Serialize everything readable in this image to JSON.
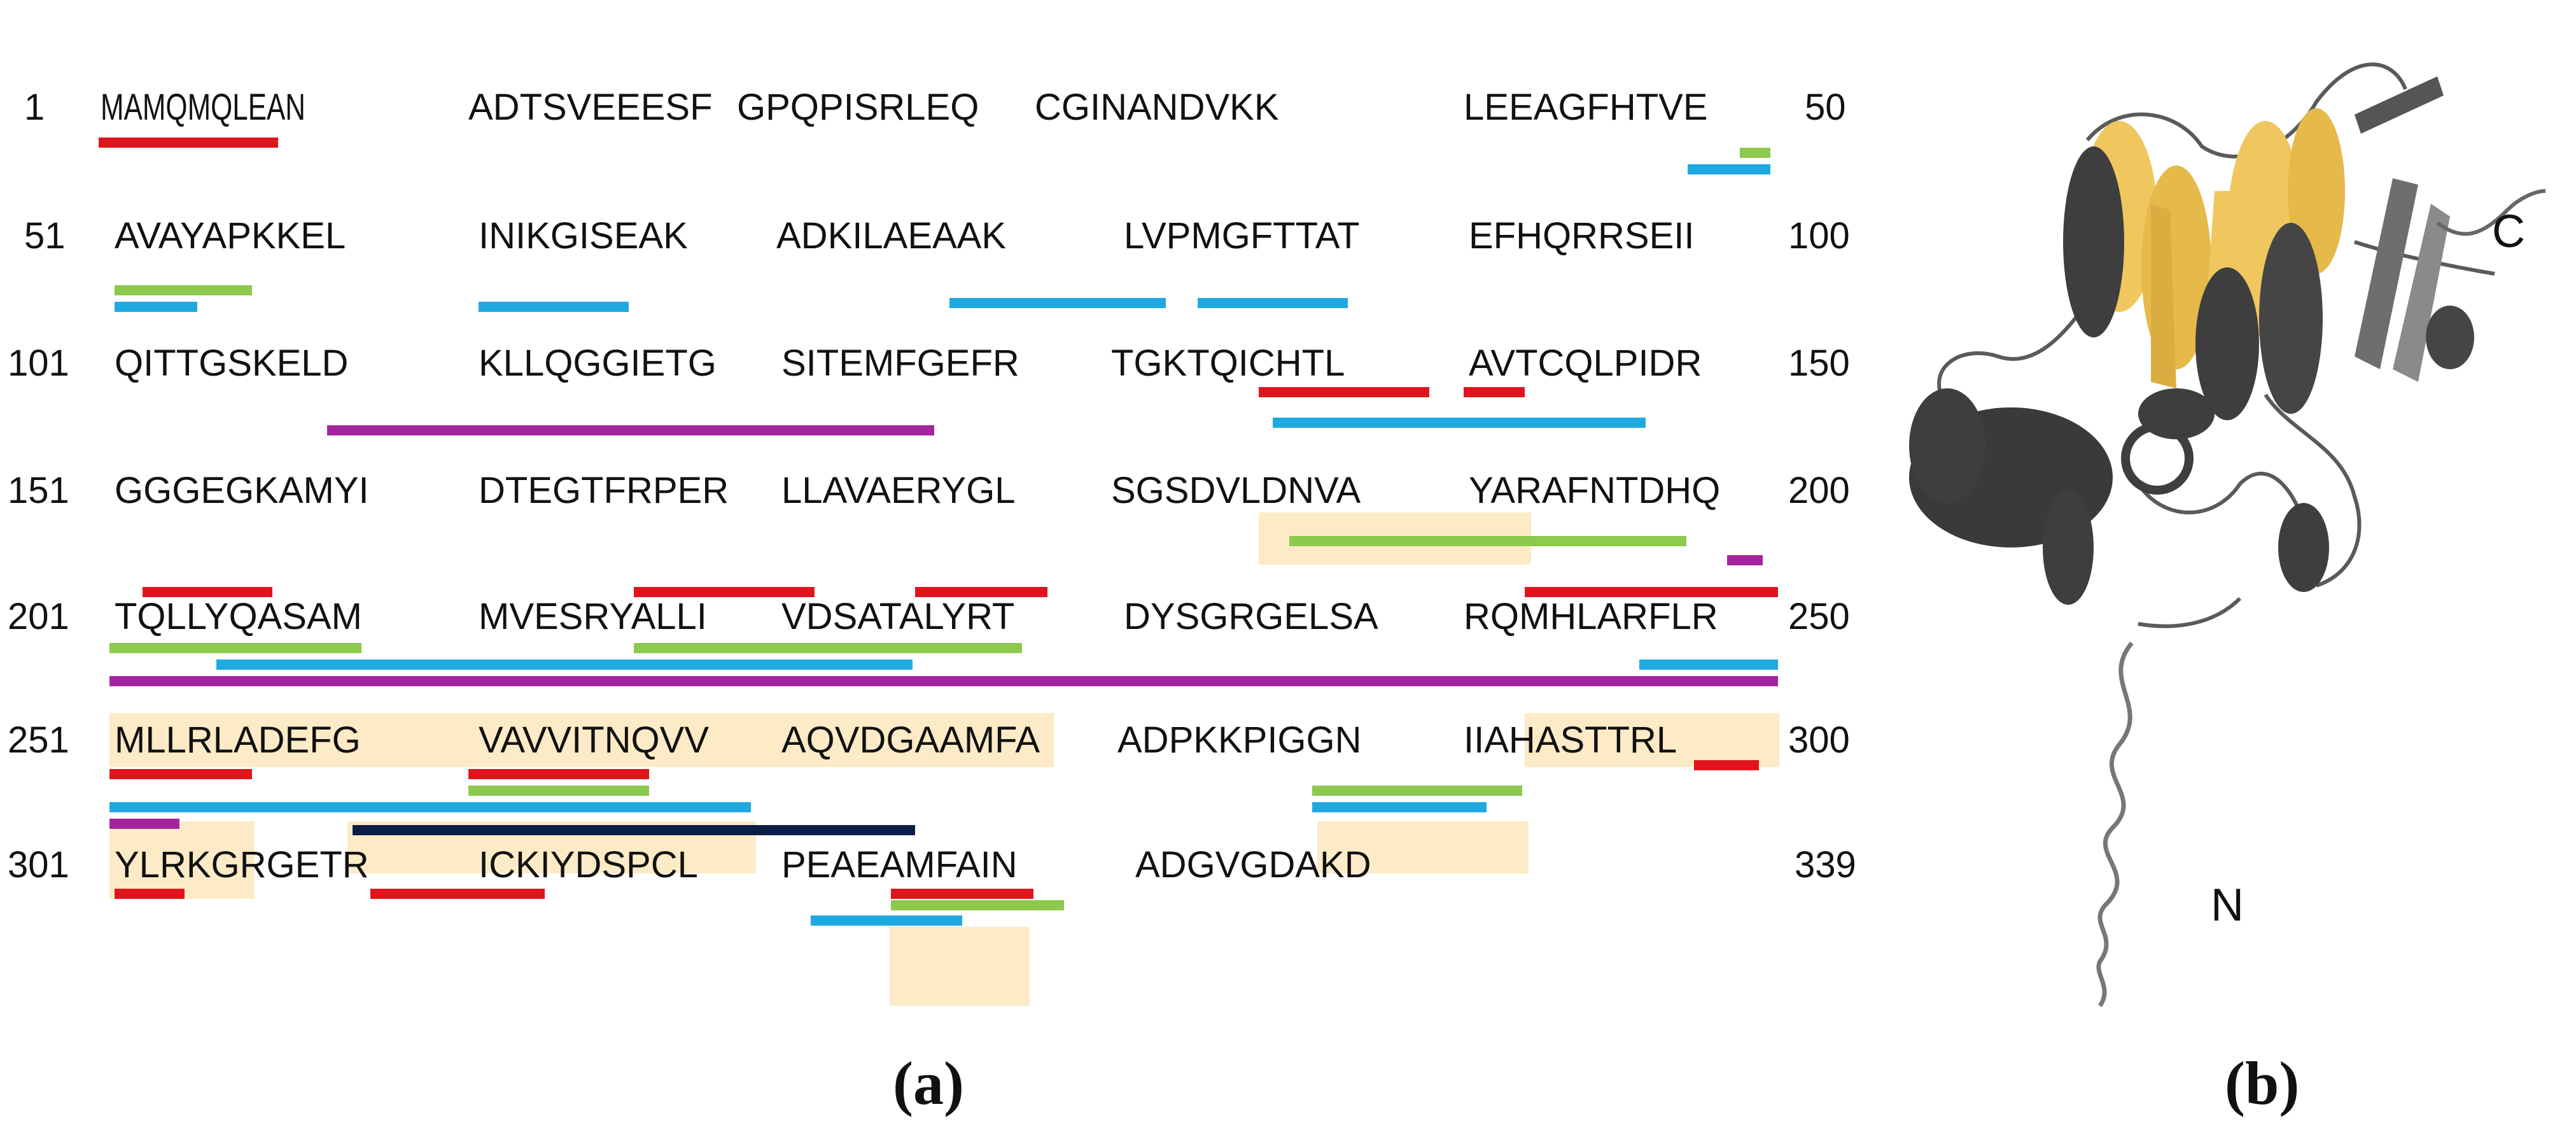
{
  "panel_a": {
    "label": "(a)",
    "rows": [
      {
        "start": "1",
        "end": "50",
        "groups": [
          "MAMQMQLEAN",
          "ADTSVEEESF",
          "GPQPISRLEQ",
          "CGINANDVKK",
          "LEEAGFHTVE"
        ]
      },
      {
        "start": "51",
        "end": "100",
        "groups": [
          "AVAYAPKKEL",
          "INIKGISEAK",
          "ADKILAEAAK",
          "LVPMGFTTAT",
          "EFHQRRSEII"
        ]
      },
      {
        "start": "101",
        "end": "150",
        "groups": [
          "QITTGSKELD",
          "KLLQGGIETG",
          "SITEMFGEFR",
          "TGKTQICHTL",
          "AVTCQLPIDR"
        ]
      },
      {
        "start": "151",
        "end": "200",
        "groups": [
          "GGGEGKAMYI",
          "DTEGTFRPER",
          "LLAVAERYGL",
          "SGSDVLDNVA",
          "YARAFNTDHQ"
        ]
      },
      {
        "start": "201",
        "end": "250",
        "groups": [
          "TQLLYQASAM",
          "MVESRYALLI",
          "VDSATALYRT",
          "DYSGRGELSA",
          "RQMHLARFLR"
        ]
      },
      {
        "start": "251",
        "end": "300",
        "groups": [
          "MLLRLADEFG",
          "VAVVITNQVV",
          "AQVDGAAMFA",
          "ADPKKPIGGN",
          "IIAHASTTRL"
        ]
      },
      {
        "start": "301",
        "end": "339",
        "groups": [
          "YLRKGRGETR",
          "ICKIYDSPCL",
          "PEAEAMFAIN",
          "ADGVGDAKD"
        ]
      }
    ],
    "colors": {
      "highlight": "#FCEBC6",
      "red": "#E0141C",
      "green": "#8CC94C",
      "blue": "#1FA9E1",
      "magenta": "#A3249E",
      "navy": "#0B1E45"
    }
  },
  "panel_b": {
    "label": "(b)",
    "c_terminus": "C",
    "n_terminus": "N",
    "colors": {
      "helix_dark": "#3E3E3E",
      "gold": "#EFC75E",
      "strand_grey": "#6E6E6E",
      "loop": "#5A5A5A"
    }
  }
}
